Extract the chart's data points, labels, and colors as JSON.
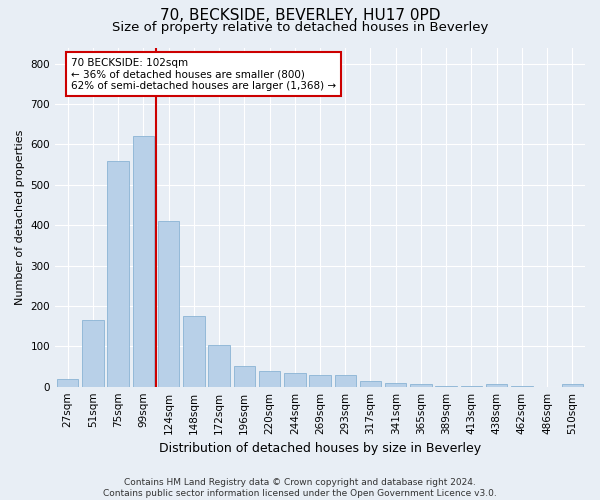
{
  "title": "70, BECKSIDE, BEVERLEY, HU17 0PD",
  "subtitle": "Size of property relative to detached houses in Beverley",
  "xlabel": "Distribution of detached houses by size in Beverley",
  "ylabel": "Number of detached properties",
  "categories": [
    "27sqm",
    "51sqm",
    "75sqm",
    "99sqm",
    "124sqm",
    "148sqm",
    "172sqm",
    "196sqm",
    "220sqm",
    "244sqm",
    "269sqm",
    "293sqm",
    "317sqm",
    "341sqm",
    "365sqm",
    "389sqm",
    "413sqm",
    "438sqm",
    "462sqm",
    "486sqm",
    "510sqm"
  ],
  "values": [
    18,
    165,
    560,
    620,
    410,
    175,
    102,
    50,
    40,
    35,
    28,
    28,
    13,
    10,
    7,
    2,
    2,
    6,
    2,
    0,
    6
  ],
  "bar_color": "#b8d0e8",
  "bar_edge_color": "#8ab4d4",
  "vline_color": "#cc0000",
  "vline_x": 3.5,
  "annotation_text": "70 BECKSIDE: 102sqm\n← 36% of detached houses are smaller (800)\n62% of semi-detached houses are larger (1,368) →",
  "annotation_box_facecolor": "#ffffff",
  "annotation_box_edgecolor": "#cc0000",
  "footer": "Contains HM Land Registry data © Crown copyright and database right 2024.\nContains public sector information licensed under the Open Government Licence v3.0.",
  "ylim": [
    0,
    840
  ],
  "yticks": [
    0,
    100,
    200,
    300,
    400,
    500,
    600,
    700,
    800
  ],
  "title_fontsize": 11,
  "subtitle_fontsize": 9.5,
  "xlabel_fontsize": 9,
  "ylabel_fontsize": 8,
  "tick_fontsize": 7.5,
  "annotation_fontsize": 7.5,
  "footer_fontsize": 6.5,
  "bg_color": "#e8eef5",
  "plot_bg_color": "#e8eef5",
  "grid_color": "#ffffff",
  "title_color": "#000000",
  "footer_color": "#333333"
}
